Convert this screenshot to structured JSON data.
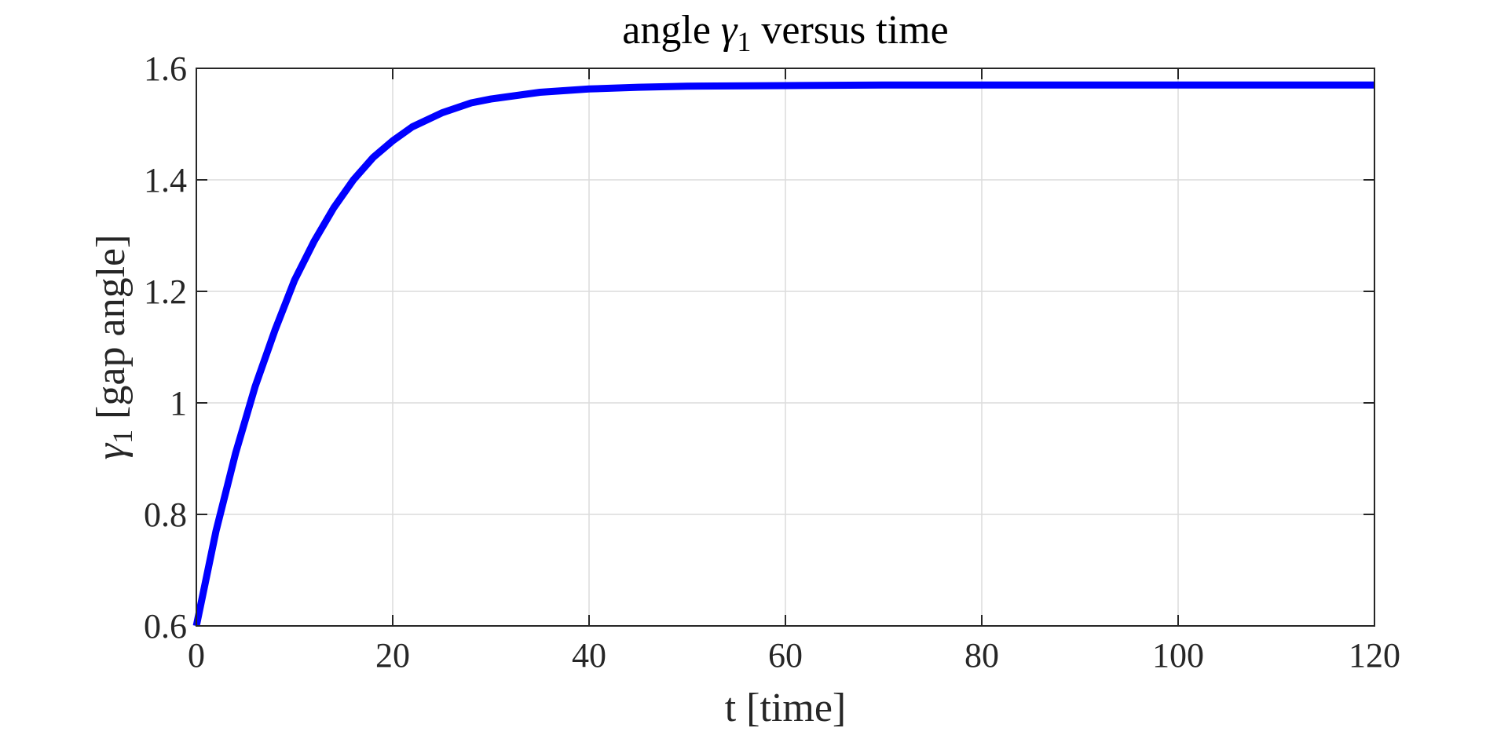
{
  "chart_data": {
    "type": "line",
    "title_parts": [
      "angle ",
      "γ",
      "1",
      " versus time"
    ],
    "xlabel": "t [time]",
    "ylabel_parts": [
      "γ",
      "1",
      " [gap angle]"
    ],
    "xlim": [
      0,
      120
    ],
    "ylim": [
      0.6,
      1.6
    ],
    "xticks": [
      "0",
      "20",
      "40",
      "60",
      "80",
      "100",
      "120"
    ],
    "yticks": [
      "0.6",
      "0.8",
      "1",
      "1.2",
      "1.4",
      "1.6"
    ],
    "grid": true,
    "series": [
      {
        "color": "#0000ff",
        "x": [
          0,
          2,
          4,
          6,
          8,
          10,
          12,
          14,
          16,
          18,
          20,
          22,
          25,
          28,
          30,
          35,
          40,
          45,
          50,
          60,
          70,
          80,
          90,
          100,
          110,
          120
        ],
        "y": [
          0.6,
          0.77,
          0.91,
          1.03,
          1.13,
          1.22,
          1.29,
          1.35,
          1.4,
          1.44,
          1.47,
          1.495,
          1.52,
          1.538,
          1.545,
          1.557,
          1.563,
          1.566,
          1.568,
          1.569,
          1.57,
          1.57,
          1.57,
          1.57,
          1.57,
          1.57
        ]
      }
    ],
    "colors": {
      "line": "#0000ff",
      "axes": "#262626",
      "grid": "#dcdcdc"
    }
  }
}
